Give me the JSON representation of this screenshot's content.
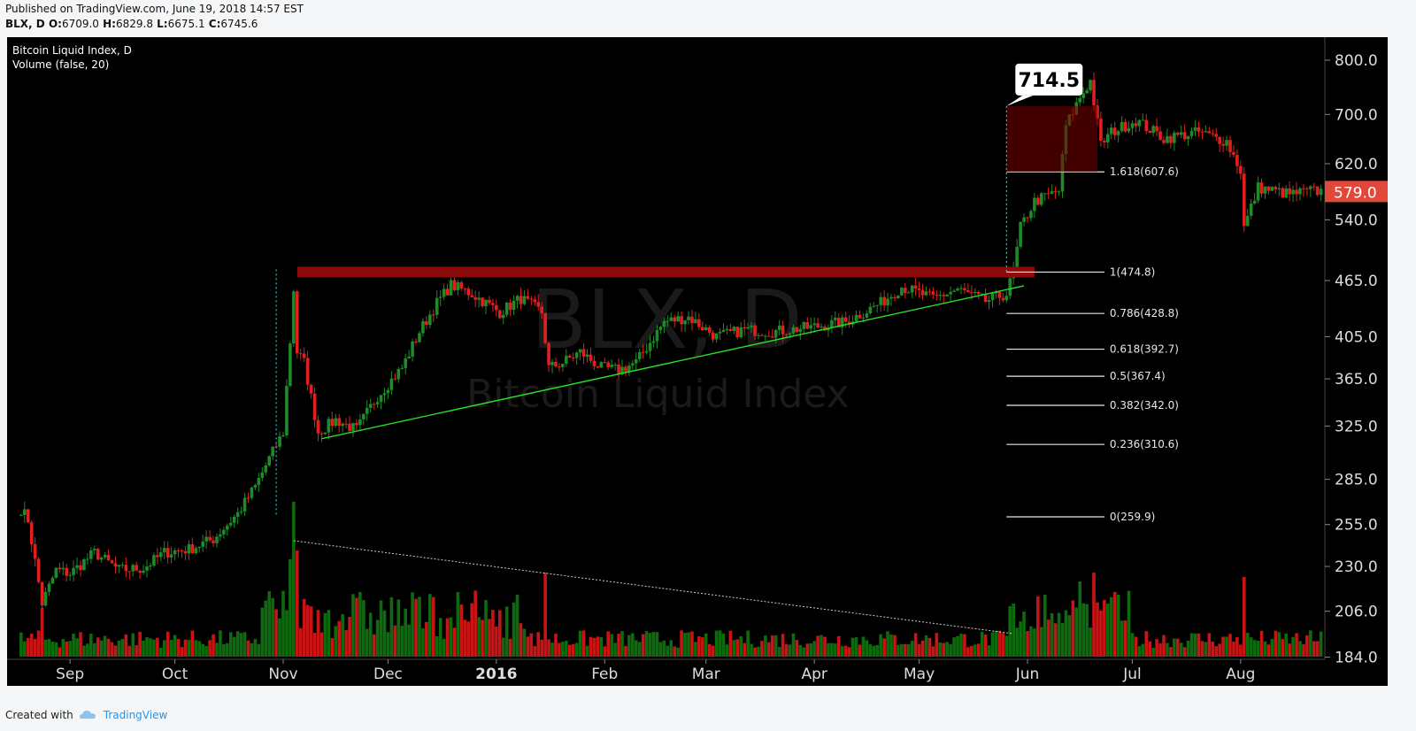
{
  "header": {
    "published": "Published on TradingView.com, June 19, 2018 14:57 EST",
    "symbol": "BLX, D",
    "ohlc_labels": {
      "o": "O:",
      "h": "H:",
      "l": "L:",
      "c": "C:"
    },
    "ohlc_values": {
      "o": "6709.0",
      "h": "6829.8",
      "l": "6675.1",
      "c": "6745.6"
    }
  },
  "legend": {
    "line1": "Bitcoin Liquid Index, D",
    "line2": "Volume (false, 20)"
  },
  "watermark": {
    "symbol": "BLX, D",
    "name": "Bitcoin Liquid Index"
  },
  "footer": {
    "created_with": "Created with",
    "brand": "TradingView"
  },
  "colors": {
    "up": "#1e8a2a",
    "down": "#e0201e",
    "vol_up": "#0d6a0d",
    "vol_down": "#c81414",
    "bg": "#000000",
    "price_tag": "#e0483a"
  },
  "chart_data": {
    "type": "candlestick",
    "scale": "log",
    "y_ticks": [
      "800.0",
      "700.0",
      "620.0",
      "540.0",
      "465.0",
      "405.0",
      "365.0",
      "325.0",
      "285.0",
      "255.0",
      "230.0",
      "206.0",
      "184.0"
    ],
    "x_ticks": [
      "Sep",
      "Oct",
      "Nov",
      "Dec",
      "2016",
      "Feb",
      "Mar",
      "Apr",
      "May",
      "Jun",
      "Jul",
      "Aug"
    ],
    "last_price": "579.0",
    "callout": "714.5",
    "fib_levels": [
      {
        "label": "1.618(607.6)",
        "value": 607.6
      },
      {
        "label": "1(474.8)",
        "value": 474.8
      },
      {
        "label": "0.786(428.8)",
        "value": 428.8
      },
      {
        "label": "0.618(392.7)",
        "value": 392.7
      },
      {
        "label": "0.5(367.4)",
        "value": 367.4
      },
      {
        "label": "0.382(342.0)",
        "value": 342.0
      },
      {
        "label": "0.236(310.6)",
        "value": 310.6
      },
      {
        "label": "0(259.9)",
        "value": 259.9
      }
    ],
    "resistance_level": 474.8,
    "price_path": [
      [
        "2015-08-18",
        265
      ],
      [
        "2015-08-20",
        258
      ],
      [
        "2015-08-24",
        210
      ],
      [
        "2015-08-28",
        228
      ],
      [
        "2015-09-01",
        226
      ],
      [
        "2015-09-08",
        238
      ],
      [
        "2015-09-15",
        228
      ],
      [
        "2015-09-22",
        229
      ],
      [
        "2015-09-28",
        238
      ],
      [
        "2015-10-05",
        240
      ],
      [
        "2015-10-12",
        246
      ],
      [
        "2015-10-19",
        262
      ],
      [
        "2015-10-24",
        280
      ],
      [
        "2015-10-28",
        300
      ],
      [
        "2015-11-01",
        320
      ],
      [
        "2015-11-03",
        400
      ],
      [
        "2015-11-04",
        455
      ],
      [
        "2015-11-05",
        390
      ],
      [
        "2015-11-07",
        380
      ],
      [
        "2015-11-11",
        320
      ],
      [
        "2015-11-16",
        330
      ],
      [
        "2015-11-22",
        322
      ],
      [
        "2015-11-28",
        350
      ],
      [
        "2015-12-05",
        375
      ],
      [
        "2015-12-10",
        410
      ],
      [
        "2015-12-15",
        440
      ],
      [
        "2015-12-19",
        460
      ],
      [
        "2015-12-25",
        450
      ],
      [
        "2016-01-02",
        430
      ],
      [
        "2016-01-08",
        445
      ],
      [
        "2016-01-14",
        430
      ],
      [
        "2016-01-16",
        375
      ],
      [
        "2016-01-20",
        380
      ],
      [
        "2016-01-25",
        390
      ],
      [
        "2016-01-31",
        375
      ],
      [
        "2016-02-05",
        373
      ],
      [
        "2016-02-10",
        380
      ],
      [
        "2016-02-18",
        420
      ],
      [
        "2016-02-25",
        425
      ],
      [
        "2016-03-04",
        405
      ],
      [
        "2016-03-12",
        412
      ],
      [
        "2016-03-20",
        410
      ],
      [
        "2016-03-30",
        414
      ],
      [
        "2016-04-10",
        420
      ],
      [
        "2016-04-20",
        440
      ],
      [
        "2016-04-26",
        458
      ],
      [
        "2016-05-05",
        445
      ],
      [
        "2016-05-12",
        455
      ],
      [
        "2016-05-20",
        442
      ],
      [
        "2016-05-26",
        450
      ],
      [
        "2016-05-28",
        475
      ],
      [
        "2016-05-30",
        530
      ],
      [
        "2016-06-03",
        565
      ],
      [
        "2016-06-10",
        580
      ],
      [
        "2016-06-12",
        680
      ],
      [
        "2016-06-16",
        730
      ],
      [
        "2016-06-19",
        760
      ],
      [
        "2016-06-22",
        650
      ],
      [
        "2016-06-25",
        670
      ],
      [
        "2016-07-02",
        690
      ],
      [
        "2016-07-10",
        660
      ],
      [
        "2016-07-20",
        670
      ],
      [
        "2016-07-28",
        655
      ],
      [
        "2016-08-01",
        610
      ],
      [
        "2016-08-02",
        530
      ],
      [
        "2016-08-06",
        585
      ],
      [
        "2016-08-15",
        575
      ],
      [
        "2016-08-22",
        580
      ],
      [
        "2016-08-24",
        579
      ]
    ],
    "volume_trendline": {
      "from": "2015-11-04",
      "to": "2016-05-28"
    }
  }
}
